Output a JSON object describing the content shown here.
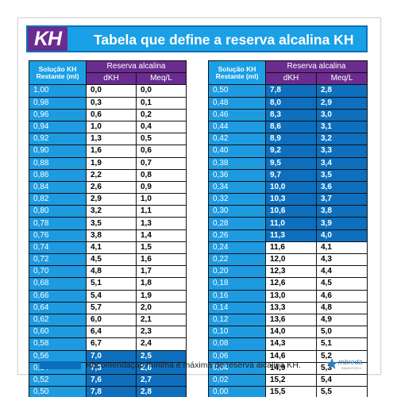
{
  "header": {
    "logo": "KH",
    "title": "Tabela que define a reserva alcalina KH"
  },
  "columns": {
    "solution_line1": "Solução KH",
    "solution_line2": "Restante (ml)",
    "reserve": "Reserva alcalina",
    "dkh": "dKH",
    "meq": "Meq/L"
  },
  "left_table": [
    {
      "sol": "1,00",
      "dkh": "0,0",
      "meq": "0,0",
      "highlight": false
    },
    {
      "sol": "0,98",
      "dkh": "0,3",
      "meq": "0,1",
      "highlight": false
    },
    {
      "sol": "0,96",
      "dkh": "0,6",
      "meq": "0,2",
      "highlight": false
    },
    {
      "sol": "0,94",
      "dkh": "1,0",
      "meq": "0,4",
      "highlight": false
    },
    {
      "sol": "0,92",
      "dkh": "1,3",
      "meq": "0,5",
      "highlight": false
    },
    {
      "sol": "0,90",
      "dkh": "1,6",
      "meq": "0,6",
      "highlight": false
    },
    {
      "sol": "0,88",
      "dkh": "1,9",
      "meq": "0,7",
      "highlight": false
    },
    {
      "sol": "0,86",
      "dkh": "2,2",
      "meq": "0,8",
      "highlight": false
    },
    {
      "sol": "0,84",
      "dkh": "2,6",
      "meq": "0,9",
      "highlight": false
    },
    {
      "sol": "0,82",
      "dkh": "2,9",
      "meq": "1,0",
      "highlight": false
    },
    {
      "sol": "0,80",
      "dkh": "3,2",
      "meq": "1,1",
      "highlight": false
    },
    {
      "sol": "0,78",
      "dkh": "3,5",
      "meq": "1,3",
      "highlight": false
    },
    {
      "sol": "0,76",
      "dkh": "3,8",
      "meq": "1,4",
      "highlight": false
    },
    {
      "sol": "0,74",
      "dkh": "4,1",
      "meq": "1,5",
      "highlight": false
    },
    {
      "sol": "0,72",
      "dkh": "4,5",
      "meq": "1,6",
      "highlight": false
    },
    {
      "sol": "0,70",
      "dkh": "4,8",
      "meq": "1,7",
      "highlight": false
    },
    {
      "sol": "0,68",
      "dkh": "5,1",
      "meq": "1,8",
      "highlight": false
    },
    {
      "sol": "0,66",
      "dkh": "5,4",
      "meq": "1,9",
      "highlight": false
    },
    {
      "sol": "0,64",
      "dkh": "5,7",
      "meq": "2,0",
      "highlight": false
    },
    {
      "sol": "0,62",
      "dkh": "6,0",
      "meq": "2,1",
      "highlight": false
    },
    {
      "sol": "0,60",
      "dkh": "6,4",
      "meq": "2,3",
      "highlight": false
    },
    {
      "sol": "0,58",
      "dkh": "6,7",
      "meq": "2,4",
      "highlight": false
    },
    {
      "sol": "0,56",
      "dkh": "7,0",
      "meq": "2,5",
      "highlight": true
    },
    {
      "sol": "0,54",
      "dkh": "7,3",
      "meq": "2,6",
      "highlight": true
    },
    {
      "sol": "0,52",
      "dkh": "7,6",
      "meq": "2,7",
      "highlight": true
    },
    {
      "sol": "0,50",
      "dkh": "7,8",
      "meq": "2,8",
      "highlight": true
    }
  ],
  "right_table": [
    {
      "sol": "0,50",
      "dkh": "7,8",
      "meq": "2,8",
      "highlight": true
    },
    {
      "sol": "0,48",
      "dkh": "8,0",
      "meq": "2,9",
      "highlight": true
    },
    {
      "sol": "0,46",
      "dkh": "8,3",
      "meq": "3,0",
      "highlight": true
    },
    {
      "sol": "0,44",
      "dkh": "8,6",
      "meq": "3,1",
      "highlight": true
    },
    {
      "sol": "0,42",
      "dkh": "8,9",
      "meq": "3,2",
      "highlight": true
    },
    {
      "sol": "0,40",
      "dkh": "9,2",
      "meq": "3,3",
      "highlight": true
    },
    {
      "sol": "0,38",
      "dkh": "9,5",
      "meq": "3,4",
      "highlight": true
    },
    {
      "sol": "0,36",
      "dkh": "9,7",
      "meq": "3,5",
      "highlight": true
    },
    {
      "sol": "0,34",
      "dkh": "10,0",
      "meq": "3,6",
      "highlight": true
    },
    {
      "sol": "0,32",
      "dkh": "10,3",
      "meq": "3,7",
      "highlight": true
    },
    {
      "sol": "0,30",
      "dkh": "10,6",
      "meq": "3,8",
      "highlight": true
    },
    {
      "sol": "0,28",
      "dkh": "11,0",
      "meq": "3,9",
      "highlight": true
    },
    {
      "sol": "0,26",
      "dkh": "11,3",
      "meq": "4,0",
      "highlight": true
    },
    {
      "sol": "0,24",
      "dkh": "11,6",
      "meq": "4,1",
      "highlight": false
    },
    {
      "sol": "0,22",
      "dkh": "12,0",
      "meq": "4,3",
      "highlight": false
    },
    {
      "sol": "0,20",
      "dkh": "12,3",
      "meq": "4,4",
      "highlight": false
    },
    {
      "sol": "0,18",
      "dkh": "12,6",
      "meq": "4,5",
      "highlight": false
    },
    {
      "sol": "0,16",
      "dkh": "13,0",
      "meq": "4,6",
      "highlight": false
    },
    {
      "sol": "0,14",
      "dkh": "13,3",
      "meq": "4,8",
      "highlight": false
    },
    {
      "sol": "0,12",
      "dkh": "13,6",
      "meq": "4,9",
      "highlight": false
    },
    {
      "sol": "0,10",
      "dkh": "14,0",
      "meq": "5,0",
      "highlight": false
    },
    {
      "sol": "0,08",
      "dkh": "14,3",
      "meq": "5,1",
      "highlight": false
    },
    {
      "sol": "0,06",
      "dkh": "14,6",
      "meq": "5,2",
      "highlight": false
    },
    {
      "sol": "0,04",
      "dkh": "14,9",
      "meq": "5,3",
      "highlight": false
    },
    {
      "sol": "0,02",
      "dkh": "15,2",
      "meq": "5,4",
      "highlight": false
    },
    {
      "sol": "0,00",
      "dkh": "15,5",
      "meq": "5,5",
      "highlight": false
    }
  ],
  "footer": {
    "legend": "Recomendação mínima e máxima de reserva alcalina KH.",
    "brand_name": "mbreda",
    "brand_sub": "aquarismo"
  },
  "colors": {
    "header_blue": "#1aa0e6",
    "purple": "#6a2c8f",
    "highlight_blue": "#0d6fbd",
    "solution_blue": "#1d9ae0"
  }
}
